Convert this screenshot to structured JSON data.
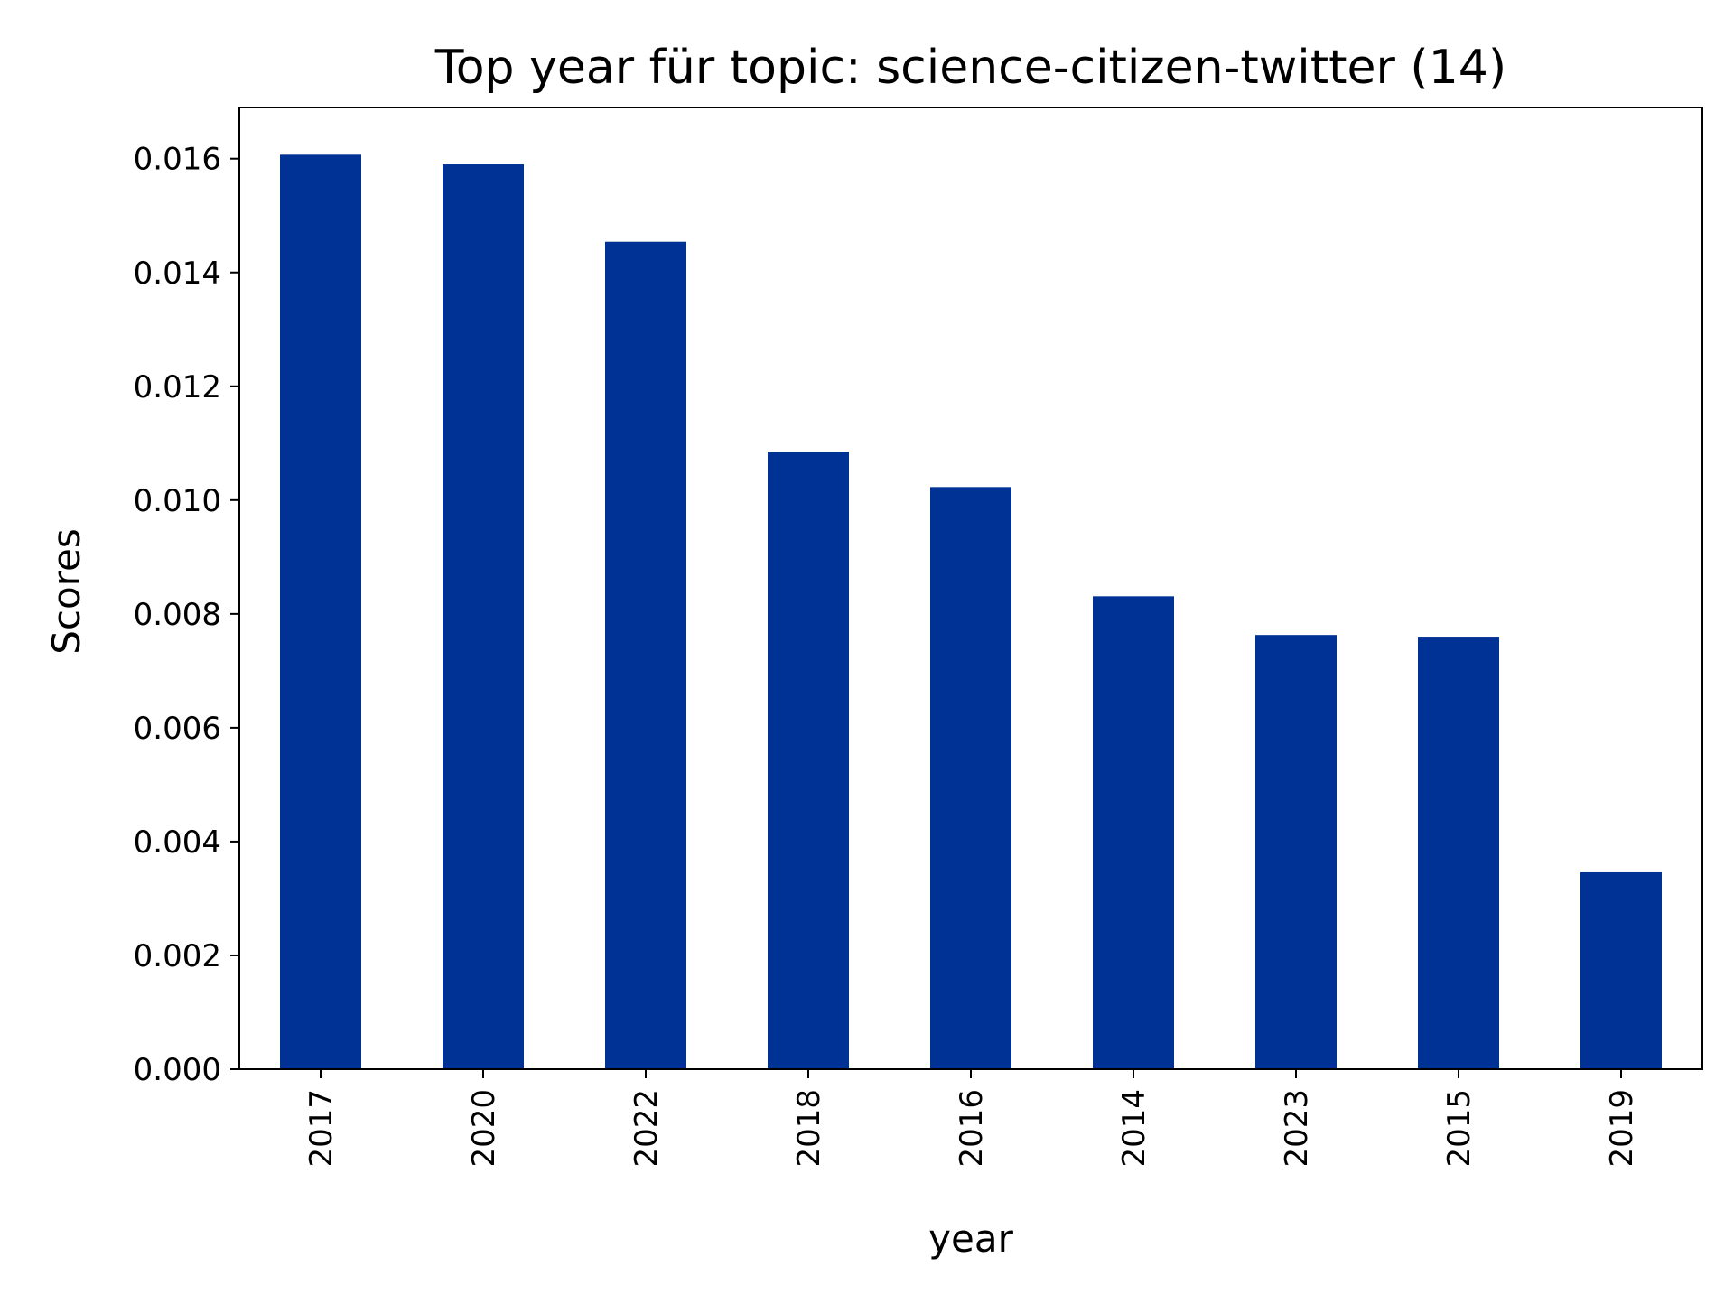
{
  "chart_data": {
    "type": "bar",
    "title": "Top year für topic: science-citizen-twitter (14)",
    "xlabel": "year",
    "ylabel": "Scores",
    "categories": [
      "2017",
      "2020",
      "2022",
      "2018",
      "2016",
      "2014",
      "2023",
      "2015",
      "2019"
    ],
    "values": [
      0.01607,
      0.0159,
      0.01454,
      0.01085,
      0.01023,
      0.00831,
      0.00763,
      0.0076,
      0.00346
    ],
    "ylim": [
      0,
      0.0169
    ],
    "yticks": [
      0.0,
      0.002,
      0.004,
      0.006,
      0.008,
      0.01,
      0.012,
      0.014,
      0.016
    ],
    "ytick_labels": [
      "0.000",
      "0.002",
      "0.004",
      "0.006",
      "0.008",
      "0.010",
      "0.012",
      "0.014",
      "0.016"
    ],
    "bar_color": "#003296",
    "grid": false,
    "legend": "none"
  }
}
